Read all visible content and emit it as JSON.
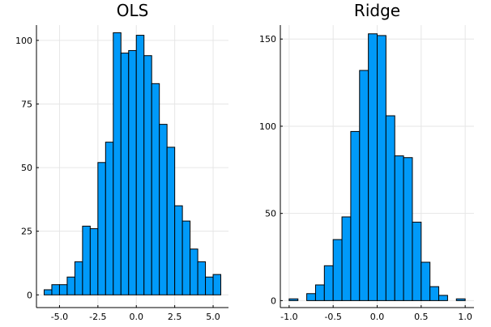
{
  "chart_data": [
    {
      "type": "bar",
      "title": "OLS",
      "xlabel": "",
      "ylabel": "",
      "bin_width": 0.5,
      "xlim": [
        -6.5,
        6.0
      ],
      "ylim": [
        -5,
        106
      ],
      "xticks": [
        -5.0,
        -2.5,
        0.0,
        2.5,
        5.0
      ],
      "xtick_labels": [
        "-5.0",
        "-2.5",
        "0.0",
        "2.5",
        "5.0"
      ],
      "yticks": [
        0,
        25,
        50,
        75,
        100
      ],
      "ytick_labels": [
        "0",
        "25",
        "50",
        "75",
        "100"
      ],
      "bin_starts": [
        -6.0,
        -5.5,
        -5.0,
        -4.5,
        -4.0,
        -3.5,
        -3.0,
        -2.5,
        -2.0,
        -1.5,
        -1.0,
        -0.5,
        0.0,
        0.5,
        1.0,
        1.5,
        2.0,
        2.5,
        3.0,
        3.5,
        4.0,
        4.5,
        5.0
      ],
      "values": [
        2,
        4,
        4,
        7,
        13,
        27,
        26,
        52,
        60,
        103,
        95,
        96,
        102,
        94,
        83,
        67,
        58,
        35,
        29,
        18,
        13,
        7,
        8
      ],
      "grid": true,
      "bar_color": "#009af9"
    },
    {
      "type": "bar",
      "title": "Ridge",
      "xlabel": "",
      "ylabel": "",
      "bin_width": 0.1,
      "xlim": [
        -1.1,
        1.1
      ],
      "ylim": [
        -4,
        158
      ],
      "xticks": [
        -1.0,
        -0.5,
        0.0,
        0.5,
        1.0
      ],
      "xtick_labels": [
        "-1.0",
        "-0.5",
        "0.0",
        "0.5",
        "1.0"
      ],
      "yticks": [
        0,
        50,
        100,
        150
      ],
      "ytick_labels": [
        "0",
        "50",
        "100",
        "150"
      ],
      "bin_starts": [
        -1.0,
        -0.9,
        -0.8,
        -0.7,
        -0.6,
        -0.5,
        -0.4,
        -0.3,
        -0.2,
        -0.1,
        0.0,
        0.1,
        0.2,
        0.3,
        0.4,
        0.5,
        0.6,
        0.7,
        0.8,
        0.9
      ],
      "values": [
        1,
        0,
        4,
        9,
        20,
        35,
        48,
        97,
        132,
        153,
        152,
        106,
        83,
        82,
        45,
        22,
        8,
        3,
        0,
        1
      ],
      "grid": true,
      "bar_color": "#009af9"
    }
  ]
}
